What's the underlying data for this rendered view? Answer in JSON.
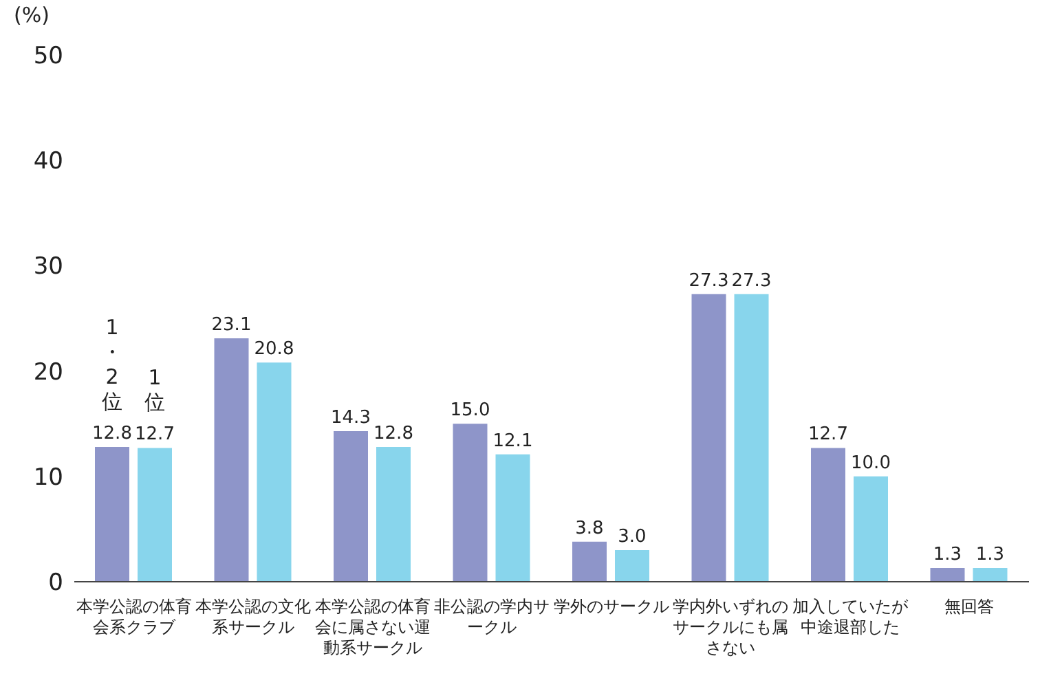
{
  "chart_data": {
    "type": "bar",
    "ylabel": "(%)",
    "categories": [
      "本学公認の体育会系クラブ",
      "本学公認の文化系サークル",
      "本学公認の体育会に属さない運動系サークル",
      "非公認の学内サークル",
      "学外のサークル",
      "学内外いずれのサークルにも属さない",
      "加入していたが中途退部した",
      "無回答"
    ],
    "series": [
      {
        "color": "#8e95c9",
        "values": [
          12.8,
          23.1,
          14.3,
          15.0,
          3.8,
          27.3,
          12.7,
          1.3
        ],
        "value_labels": [
          "12.8",
          "23.1",
          "14.3",
          "15.0",
          "3.8",
          "27.3",
          "12.7",
          "1.3"
        ]
      },
      {
        "color": "#88d5ec",
        "values": [
          12.7,
          20.8,
          12.8,
          12.1,
          3.0,
          27.3,
          10.0,
          1.3
        ],
        "value_labels": [
          "12.7",
          "20.8",
          "12.8",
          "12.1",
          "3.0",
          "27.3",
          "10.0",
          "1.3"
        ]
      }
    ],
    "ylim": [
      0,
      50
    ],
    "yticks": [
      0,
      10,
      20,
      30,
      40,
      50
    ],
    "grid": false,
    "legend": false,
    "annotations": [
      {
        "text": "1・2位",
        "x": "本学公認の体育会系クラブ",
        "y": 12.8
      },
      {
        "text": "1位",
        "x": "本学公認の体育会系クラブ",
        "y": 12.7
      }
    ]
  }
}
